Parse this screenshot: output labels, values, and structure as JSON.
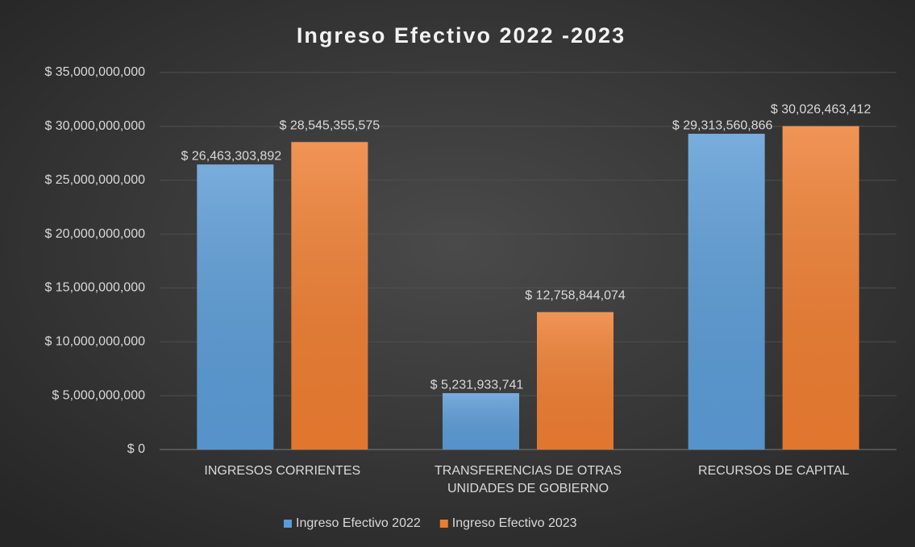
{
  "chart_data": {
    "type": "bar",
    "title": "Ingreso Efectivo 2022 -2023",
    "categories": [
      "INGRESOS CORRIENTES",
      "TRANSFERENCIAS DE OTRAS UNIDADES DE GOBIERNO",
      "RECURSOS DE CAPITAL"
    ],
    "series": [
      {
        "name": "Ingreso Efectivo 2022",
        "color": "#5b9bd5",
        "values": [
          26463303892,
          5231933741,
          29313560866
        ],
        "value_labels": [
          "$ 26,463,303,892",
          "$ 5,231,933,741",
          "$ 29,313,560,866"
        ]
      },
      {
        "name": "Ingreso Efectivo 2023",
        "color": "#ed7d31",
        "values": [
          28545355575,
          12758844074,
          30026463412
        ],
        "value_labels": [
          "$ 28,545,355,575",
          "$ 12,758,844,074",
          "$ 30,026,463,412"
        ]
      }
    ],
    "ylim": [
      0,
      35000000000
    ],
    "yticks": [
      {
        "value": 0,
        "label": "$ 0"
      },
      {
        "value": 5000000000,
        "label": "$ 5,000,000,000"
      },
      {
        "value": 10000000000,
        "label": "$ 10,000,000,000"
      },
      {
        "value": 15000000000,
        "label": "$ 15,000,000,000"
      },
      {
        "value": 20000000000,
        "label": "$ 20,000,000,000"
      },
      {
        "value": 25000000000,
        "label": "$ 25,000,000,000"
      },
      {
        "value": 30000000000,
        "label": "$ 30,000,000,000"
      },
      {
        "value": 35000000000,
        "label": "$ 35,000,000,000"
      }
    ],
    "grid": true,
    "legend": "bottom"
  }
}
